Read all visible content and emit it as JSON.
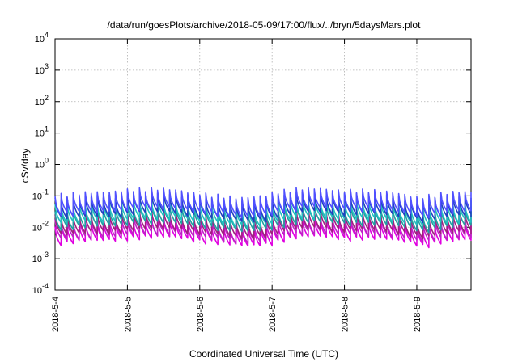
{
  "chart_data": {
    "type": "line",
    "title": "/data/run/goesPlots/archive/2018-05-09/17:00/flux/../bryn/5daysMars.plot",
    "xlabel": "Coordinated Universal Time (UTC)",
    "ylabel": "cSv/day",
    "yscale": "log",
    "ylim": [
      0.0001,
      10000
    ],
    "xlim_days": [
      0,
      5.75
    ],
    "grid": true,
    "x_ticks": [
      "2018-5-4",
      "2018-5-5",
      "2018-5-6",
      "2018-5-7",
      "2018-5-8",
      "2018-5-9"
    ],
    "y_ticks": [
      {
        "base": "10",
        "exp": "-4"
      },
      {
        "base": "10",
        "exp": "-3"
      },
      {
        "base": "10",
        "exp": "-2"
      },
      {
        "base": "10",
        "exp": "-1"
      },
      {
        "base": "10",
        "exp": "0"
      },
      {
        "base": "10",
        "exp": "1"
      },
      {
        "base": "10",
        "exp": "2"
      },
      {
        "base": "10",
        "exp": "3"
      },
      {
        "base": "10",
        "exp": "4"
      }
    ],
    "reference_line": {
      "y": 0.1,
      "color": "#e06070"
    },
    "pattern": {
      "description_free": true,
      "teeth_per_day": 12,
      "decay_factor_per_tooth": 0.25
    },
    "series": [
      {
        "color": "#e000e0",
        "peak": 0.012
      },
      {
        "color": "#c020c8",
        "peak": 0.016
      },
      {
        "color": "#a02080",
        "peak": 0.022
      },
      {
        "color": "#20a0a0",
        "peak": 0.035
      },
      {
        "color": "#20c0c0",
        "peak": 0.05
      },
      {
        "color": "#2040c0",
        "peak": 0.075
      },
      {
        "color": "#5050ff",
        "peak": 0.1
      }
    ]
  }
}
